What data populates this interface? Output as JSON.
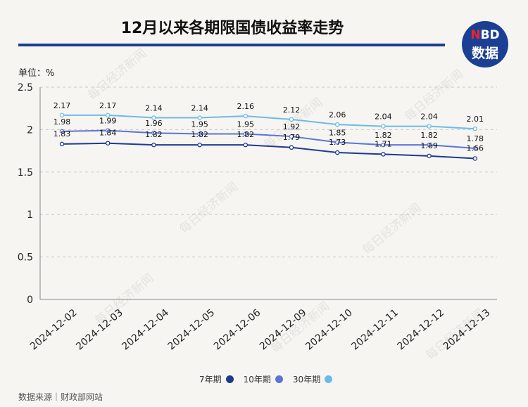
{
  "header": {
    "title": "12月以来各期限国债收益率走势",
    "logo_top": "NBD",
    "logo_bottom": "数据"
  },
  "watermark": "每日经济新闻",
  "footer": {
    "source": "数据来源｜财政部网站"
  },
  "colors": {
    "title_rule": "#1a3f8f",
    "logo_bg": "#1b3f93"
  },
  "chart_data": {
    "type": "line",
    "unit_label": "单位：%",
    "x": [
      "2024-12-02",
      "2024-12-03",
      "2024-12-04",
      "2024-12-05",
      "2024-12-06",
      "2024-12-09",
      "2024-12-10",
      "2024-12-11",
      "2024-12-12",
      "2024-12-13"
    ],
    "ylim": [
      0,
      2.5
    ],
    "yticks": [
      "0",
      "0.5",
      "1",
      "1.5",
      "2",
      "2.5"
    ],
    "grid": true,
    "legend_position": "bottom-center",
    "series": [
      {
        "name": "7年期",
        "color": "#1e3a8f",
        "values": [
          1.83,
          1.84,
          1.82,
          1.82,
          1.82,
          1.79,
          1.73,
          1.71,
          1.69,
          1.66
        ],
        "labels": [
          "1.83",
          "1.84",
          "1.82",
          "1.82",
          "1.82",
          "1.79",
          "1.73",
          "1.71",
          "1.69",
          "1.66"
        ]
      },
      {
        "name": "10年期",
        "color": "#5b74d8",
        "values": [
          1.98,
          1.99,
          1.96,
          1.95,
          1.95,
          1.92,
          1.85,
          1.82,
          1.82,
          1.78
        ],
        "labels": [
          "1.98",
          "1.99",
          "1.96",
          "1.95",
          "1.95",
          "1.92",
          "1.85",
          "1.82",
          "1.82",
          "1.78"
        ]
      },
      {
        "name": "30年期",
        "color": "#6bbbe8",
        "values": [
          2.17,
          2.17,
          2.14,
          2.14,
          2.16,
          2.12,
          2.06,
          2.04,
          2.04,
          2.01
        ],
        "labels": [
          "2.17",
          "2.17",
          "2.14",
          "2.14",
          "2.16",
          "2.12",
          "2.06",
          "2.04",
          "2.04",
          "2.01"
        ]
      }
    ]
  }
}
